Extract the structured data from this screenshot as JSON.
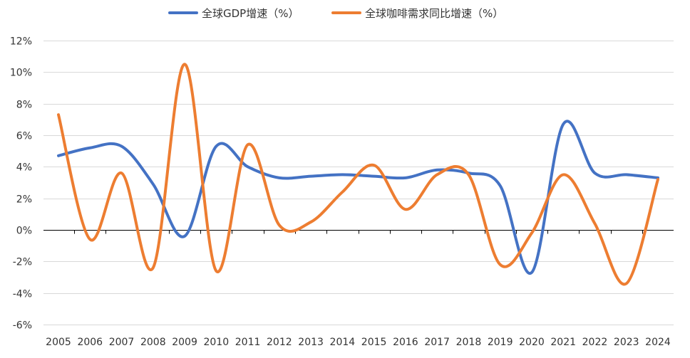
{
  "chart_data": {
    "type": "line",
    "categories": [
      "2005",
      "2006",
      "2007",
      "2008",
      "2009",
      "2010",
      "2011",
      "2012",
      "2013",
      "2014",
      "2015",
      "2016",
      "2017",
      "2018",
      "2019",
      "2020",
      "2021",
      "2022",
      "2023",
      "2024"
    ],
    "series": [
      {
        "name": "全球GDP增速（%）",
        "color": "#4472c4",
        "values": [
          4.7,
          5.2,
          5.3,
          2.9,
          -0.4,
          5.3,
          4.0,
          3.3,
          3.4,
          3.5,
          3.4,
          3.3,
          3.8,
          3.6,
          2.8,
          -2.7,
          6.7,
          3.6,
          3.5,
          3.3
        ]
      },
      {
        "name": "全球咖啡需求同比增速（%）",
        "color": "#ed7d31",
        "values": [
          7.3,
          -0.6,
          3.6,
          -2.4,
          10.5,
          -2.6,
          5.4,
          0.3,
          0.5,
          2.4,
          4.1,
          1.3,
          3.5,
          3.5,
          -2.2,
          -0.2,
          3.5,
          0.4,
          -3.4,
          3.2
        ]
      }
    ],
    "ylim": [
      -6,
      12
    ],
    "yticks": [
      12,
      10,
      8,
      6,
      4,
      2,
      0,
      -2,
      -4,
      -6
    ],
    "ytick_labels": [
      "12%",
      "10%",
      "8%",
      "6%",
      "4%",
      "2%",
      "0%",
      "-2%",
      "-4%",
      "-6%"
    ],
    "grid": true,
    "legend_position": "top"
  }
}
